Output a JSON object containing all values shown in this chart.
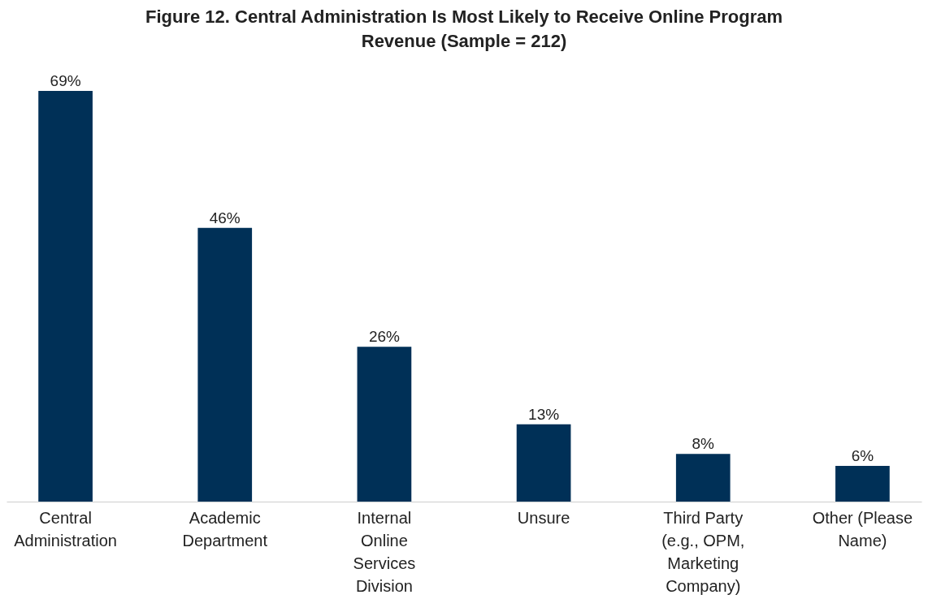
{
  "chart_data": {
    "type": "bar",
    "title": "Figure 12. Central Administration Is Most Likely to Receive Online Program Revenue (Sample = 212)",
    "categories": [
      "Central Administration",
      "Academic Department",
      "Internal Online Services Division",
      "Unsure",
      "Third Party (e.g., OPM, Marketing Company)",
      "Other (Please Name)"
    ],
    "values": [
      69,
      46,
      26,
      13,
      8,
      6
    ],
    "value_labels": [
      "69%",
      "46%",
      "26%",
      "13%",
      "8%",
      "6%"
    ],
    "color": "#003057"
  }
}
